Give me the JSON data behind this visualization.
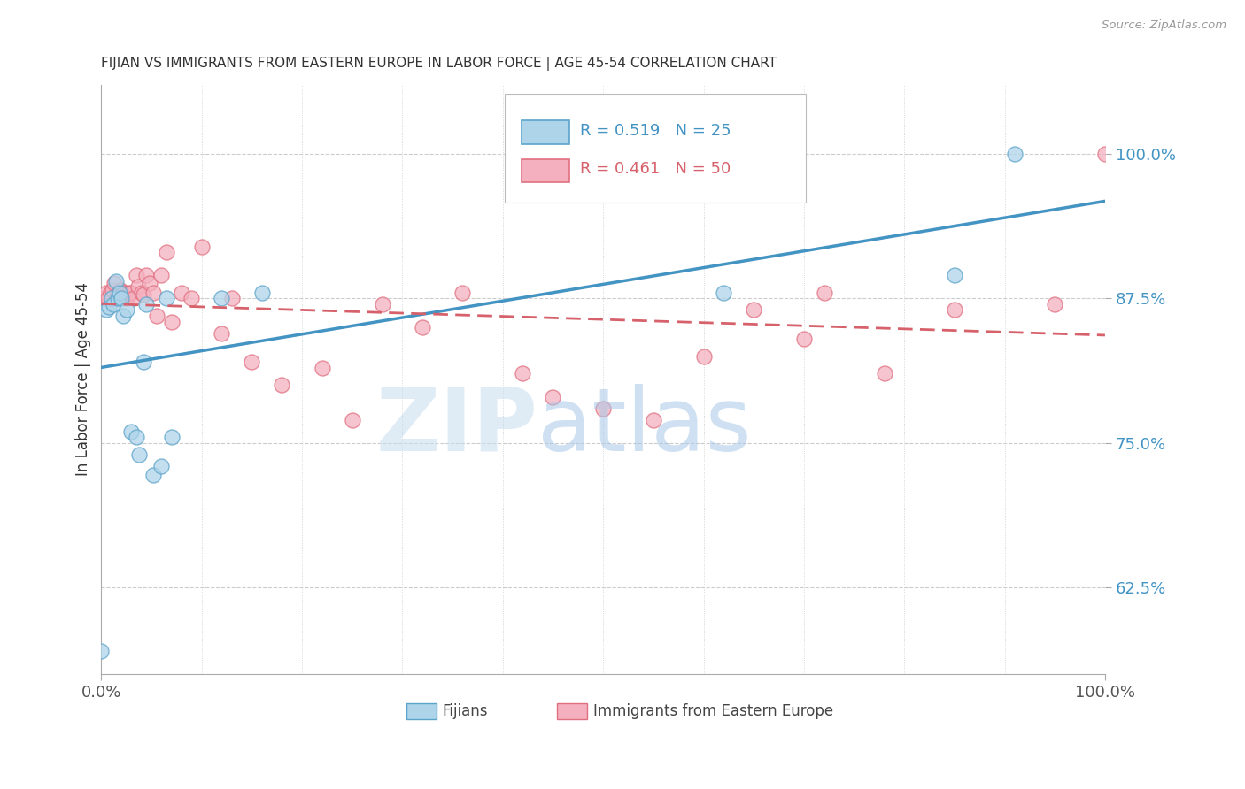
{
  "title": "FIJIAN VS IMMIGRANTS FROM EASTERN EUROPE IN LABOR FORCE | AGE 45-54 CORRELATION CHART",
  "source": "Source: ZipAtlas.com",
  "ylabel": "In Labor Force | Age 45-54",
  "xlim": [
    0.0,
    1.0
  ],
  "ylim": [
    0.55,
    1.06
  ],
  "fijian_color": "#aed4ea",
  "fijian_edge_color": "#5ba3c9",
  "eastern_color": "#f4b0bf",
  "eastern_edge_color": "#e07080",
  "fijian_line_color": "#4393c3",
  "eastern_line_color": "#d6616b",
  "R_fijian": 0.519,
  "N_fijian": 25,
  "R_eastern": 0.461,
  "N_eastern": 50,
  "fijian_x": [
    0.005,
    0.008,
    0.01,
    0.012,
    0.015,
    0.016,
    0.018,
    0.02,
    0.022,
    0.025,
    0.03,
    0.035,
    0.038,
    0.042,
    0.045,
    0.052,
    0.06,
    0.065,
    0.07,
    0.12,
    0.16,
    0.62,
    0.85,
    0.91,
    0.0
  ],
  "fijian_y": [
    0.865,
    0.868,
    0.875,
    0.87,
    0.89,
    0.875,
    0.88,
    0.875,
    0.86,
    0.865,
    0.76,
    0.755,
    0.74,
    0.82,
    0.87,
    0.722,
    0.73,
    0.875,
    0.755,
    0.875,
    0.88,
    0.88,
    0.895,
    1.0,
    0.57
  ],
  "eastern_x": [
    0.003,
    0.005,
    0.007,
    0.009,
    0.011,
    0.013,
    0.015,
    0.017,
    0.019,
    0.021,
    0.023,
    0.025,
    0.027,
    0.03,
    0.032,
    0.035,
    0.037,
    0.04,
    0.042,
    0.045,
    0.048,
    0.052,
    0.055,
    0.06,
    0.065,
    0.07,
    0.08,
    0.09,
    0.1,
    0.12,
    0.13,
    0.15,
    0.18,
    0.22,
    0.25,
    0.28,
    0.32,
    0.36,
    0.42,
    0.45,
    0.5,
    0.55,
    0.6,
    0.65,
    0.7,
    0.72,
    0.78,
    0.85,
    0.95,
    1.0
  ],
  "eastern_y": [
    0.875,
    0.88,
    0.875,
    0.88,
    0.882,
    0.888,
    0.875,
    0.878,
    0.882,
    0.88,
    0.88,
    0.875,
    0.88,
    0.88,
    0.875,
    0.895,
    0.885,
    0.88,
    0.878,
    0.895,
    0.888,
    0.88,
    0.86,
    0.895,
    0.915,
    0.855,
    0.88,
    0.875,
    0.92,
    0.845,
    0.875,
    0.82,
    0.8,
    0.815,
    0.77,
    0.87,
    0.85,
    0.88,
    0.81,
    0.79,
    0.78,
    0.77,
    0.825,
    0.865,
    0.84,
    0.88,
    0.81,
    0.865,
    0.87,
    1.0
  ],
  "yticks": [
    0.625,
    0.75,
    0.875,
    1.0
  ],
  "ytick_labels": [
    "62.5%",
    "75.0%",
    "87.5%",
    "100.0%"
  ],
  "background_color": "#ffffff",
  "grid_color": "#cccccc"
}
